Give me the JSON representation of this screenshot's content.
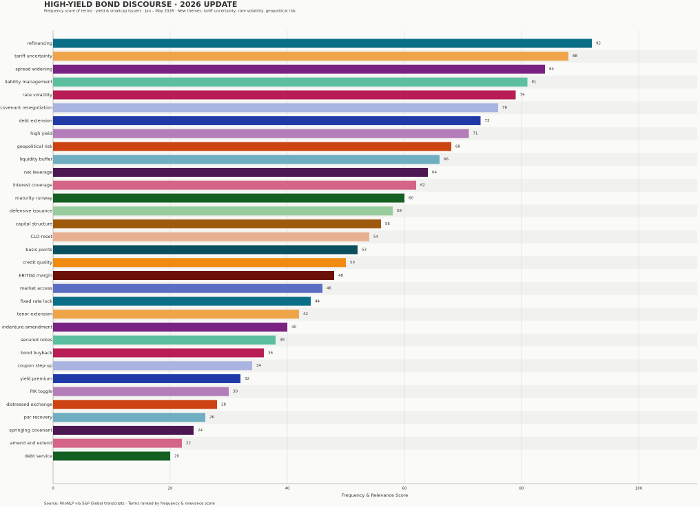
{
  "chart_data": {
    "type": "barh",
    "title": "HIGH-YIELD BOND DISCOURSE  ·  2026 UPDATE",
    "subtitle": "Frequency score of terms · yield & smallcap issuers · Jan – May 2026  ·  New themes: tariff uncertainty, rate volatility, geopolitical risk",
    "source": "Source: PrioNLP via S&P Global transcripts  ·  Terms ranked by frequency & relevance score",
    "x_label": "Frequency & Relevance Score",
    "categories": [
      "refinancing",
      "tariff uncertainty",
      "spread widening",
      "liability management",
      "rate volatility",
      "covenant renegotiation",
      "debt extension",
      "high yield",
      "geopolitical risk",
      "liquidity buffer",
      "net leverage",
      "interest coverage",
      "maturity runway",
      "defensive issuance",
      "capital structure",
      "CLO reset",
      "basis points",
      "credit quality",
      "EBITDA margin",
      "market access",
      "fixed rate lock",
      "tenor extension",
      "indenture amendment",
      "secured notes",
      "bond buyback",
      "coupon step-up",
      "yield premium",
      "PIK toggle",
      "distressed exchange",
      "par recovery",
      "springing covenant",
      "amend and extend",
      "debt service"
    ],
    "values": [
      92,
      88,
      84,
      81,
      79,
      76,
      73,
      71,
      68,
      66,
      64,
      62,
      60,
      58,
      56,
      54,
      52,
      50,
      48,
      46,
      44,
      42,
      40,
      38,
      36,
      34,
      32,
      30,
      28,
      26,
      24,
      22,
      20
    ],
    "colors": [
      "#0b6e87",
      "#eea54a",
      "#7a2281",
      "#5bbfa0",
      "#b81e55",
      "#aab4e0",
      "#1f3aa6",
      "#b27db8",
      "#cc4210",
      "#6eaec0",
      "#4c1751",
      "#d46587",
      "#145f22",
      "#98cc9c",
      "#9e5a0c",
      "#e8b090",
      "#0a4f5e",
      "#f08a10",
      "#6b1008",
      "#5a6ec4",
      "#0b6e87",
      "#eea54a",
      "#7a2281",
      "#5bbfa0",
      "#b81e55",
      "#aab4e0",
      "#1f3aa6",
      "#b27db8",
      "#cc4210",
      "#6eaec0",
      "#4c1751",
      "#d46587",
      "#145f22"
    ],
    "xlim": [
      0,
      110
    ],
    "xticks": [
      0,
      20,
      40,
      60,
      80,
      100
    ],
    "grid": true
  }
}
